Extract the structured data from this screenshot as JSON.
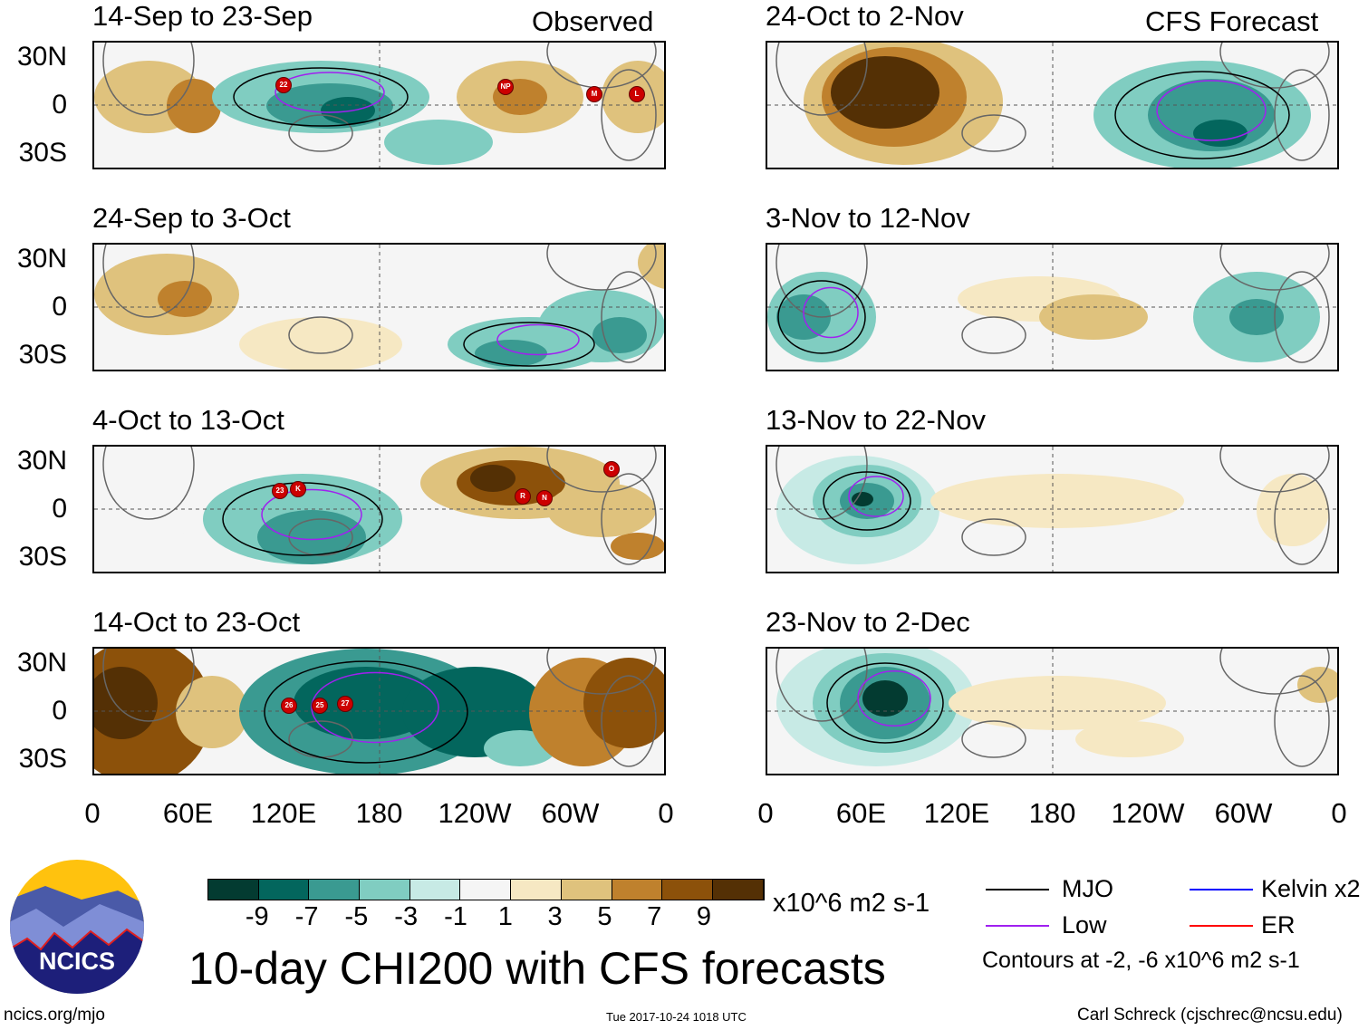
{
  "header": {
    "observed_label": "Observed",
    "forecast_label": "CFS Forecast"
  },
  "panels": [
    {
      "title": "14-Sep to 23-Sep",
      "column": "observed",
      "storms": [
        "22",
        "NP",
        "M",
        "L"
      ]
    },
    {
      "title": "24-Sep to 3-Oct",
      "column": "observed",
      "storms": []
    },
    {
      "title": "4-Oct to 13-Oct",
      "column": "observed",
      "storms": [
        "23",
        "K",
        "R",
        "N",
        "O"
      ]
    },
    {
      "title": "14-Oct to 23-Oct",
      "column": "observed",
      "storms": [
        "26",
        "25",
        "27"
      ]
    },
    {
      "title": "24-Oct to 2-Nov",
      "column": "forecast",
      "storms": []
    },
    {
      "title": "3-Nov to 12-Nov",
      "column": "forecast",
      "storms": []
    },
    {
      "title": "13-Nov to 22-Nov",
      "column": "forecast",
      "storms": []
    },
    {
      "title": "23-Nov to 2-Dec",
      "column": "forecast",
      "storms": []
    }
  ],
  "lat_labels": [
    "30N",
    "0",
    "30S"
  ],
  "lon_labels": [
    "0",
    "60E",
    "120E",
    "180",
    "120W",
    "60W",
    "0"
  ],
  "colorbar": {
    "labels": [
      "-9",
      "-7",
      "-5",
      "-3",
      "-1",
      "1",
      "3",
      "5",
      "7",
      "9"
    ],
    "colors": [
      "#033b31",
      "#03665d",
      "#3a9a91",
      "#80cdc1",
      "#c7eae5",
      "#f5f5f5",
      "#f6e8c3",
      "#dfc27d",
      "#bf812d",
      "#8c510a",
      "#543005"
    ],
    "units": "x10^6 m2 s-1"
  },
  "legend": {
    "items": [
      {
        "label": "MJO",
        "color": "#000000"
      },
      {
        "label": "Kelvin x2",
        "color": "#0000ff"
      },
      {
        "label": "Low",
        "color": "#a020f0"
      },
      {
        "label": "ER",
        "color": "#ff0000"
      }
    ],
    "contours_note": "Contours at -2, -6 x10^6 m2 s-1"
  },
  "title": "10-day CHI200 with CFS forecasts",
  "logo_text": "NCICS",
  "footer": {
    "url": "ncics.org/mjo",
    "timestamp": "Tue 2017-10-24 1018 UTC",
    "credit": "Carl Schreck (cjschrec@ncsu.edu)"
  }
}
